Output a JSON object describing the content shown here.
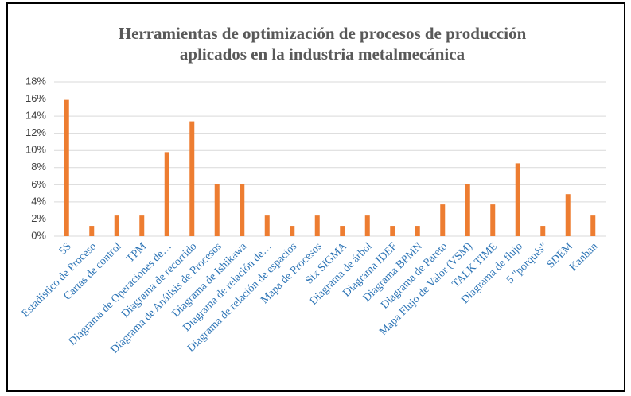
{
  "chart_data": {
    "type": "bar",
    "title": [
      "Herramientas  de optimización  de procesos de producción",
      "aplicados en la industria  metalmecánica"
    ],
    "categories": [
      "5S",
      "Estadistico de Proceso",
      "Cartas de control",
      "TPM",
      "Diagrama de Operaciones de…",
      "Diagrama de recorrido",
      "Diagrama de Análisis de Procesos",
      "Diagrama de Ishikawa",
      "Diagrama de relación de…",
      "Diagrama de relación de espacios",
      "Mapa de Procesos",
      "Six SIGMA",
      "Diagrama de árbol",
      "Diagrama IDEF",
      "Diagrama  BPMN",
      "Diagrama de Pareto",
      "Mapa Flujo de Valor (VSM)",
      "TALK TIME",
      "Diagrama de flujo",
      "5 \"porqués\"",
      "SDEM",
      "Kanban"
    ],
    "values": [
      15.9,
      1.2,
      2.4,
      2.4,
      9.8,
      13.4,
      6.1,
      6.1,
      2.4,
      1.2,
      2.4,
      1.2,
      2.4,
      1.2,
      1.2,
      3.7,
      6.1,
      3.7,
      8.5,
      1.2,
      4.9,
      2.4
    ],
    "color": "#ed7d31",
    "ylim": [
      0,
      18
    ],
    "yticks": [
      {
        "value": 0,
        "label": "0%"
      },
      {
        "value": 2,
        "label": "2%"
      },
      {
        "value": 4,
        "label": "4%"
      },
      {
        "value": 6,
        "label": "6%"
      },
      {
        "value": 8,
        "label": "8%"
      },
      {
        "value": 10,
        "label": "10%"
      },
      {
        "value": 12,
        "label": "12%"
      },
      {
        "value": 14,
        "label": "14%"
      },
      {
        "value": 16,
        "label": "16%"
      },
      {
        "value": 18,
        "label": "18%"
      }
    ],
    "grid": true
  }
}
